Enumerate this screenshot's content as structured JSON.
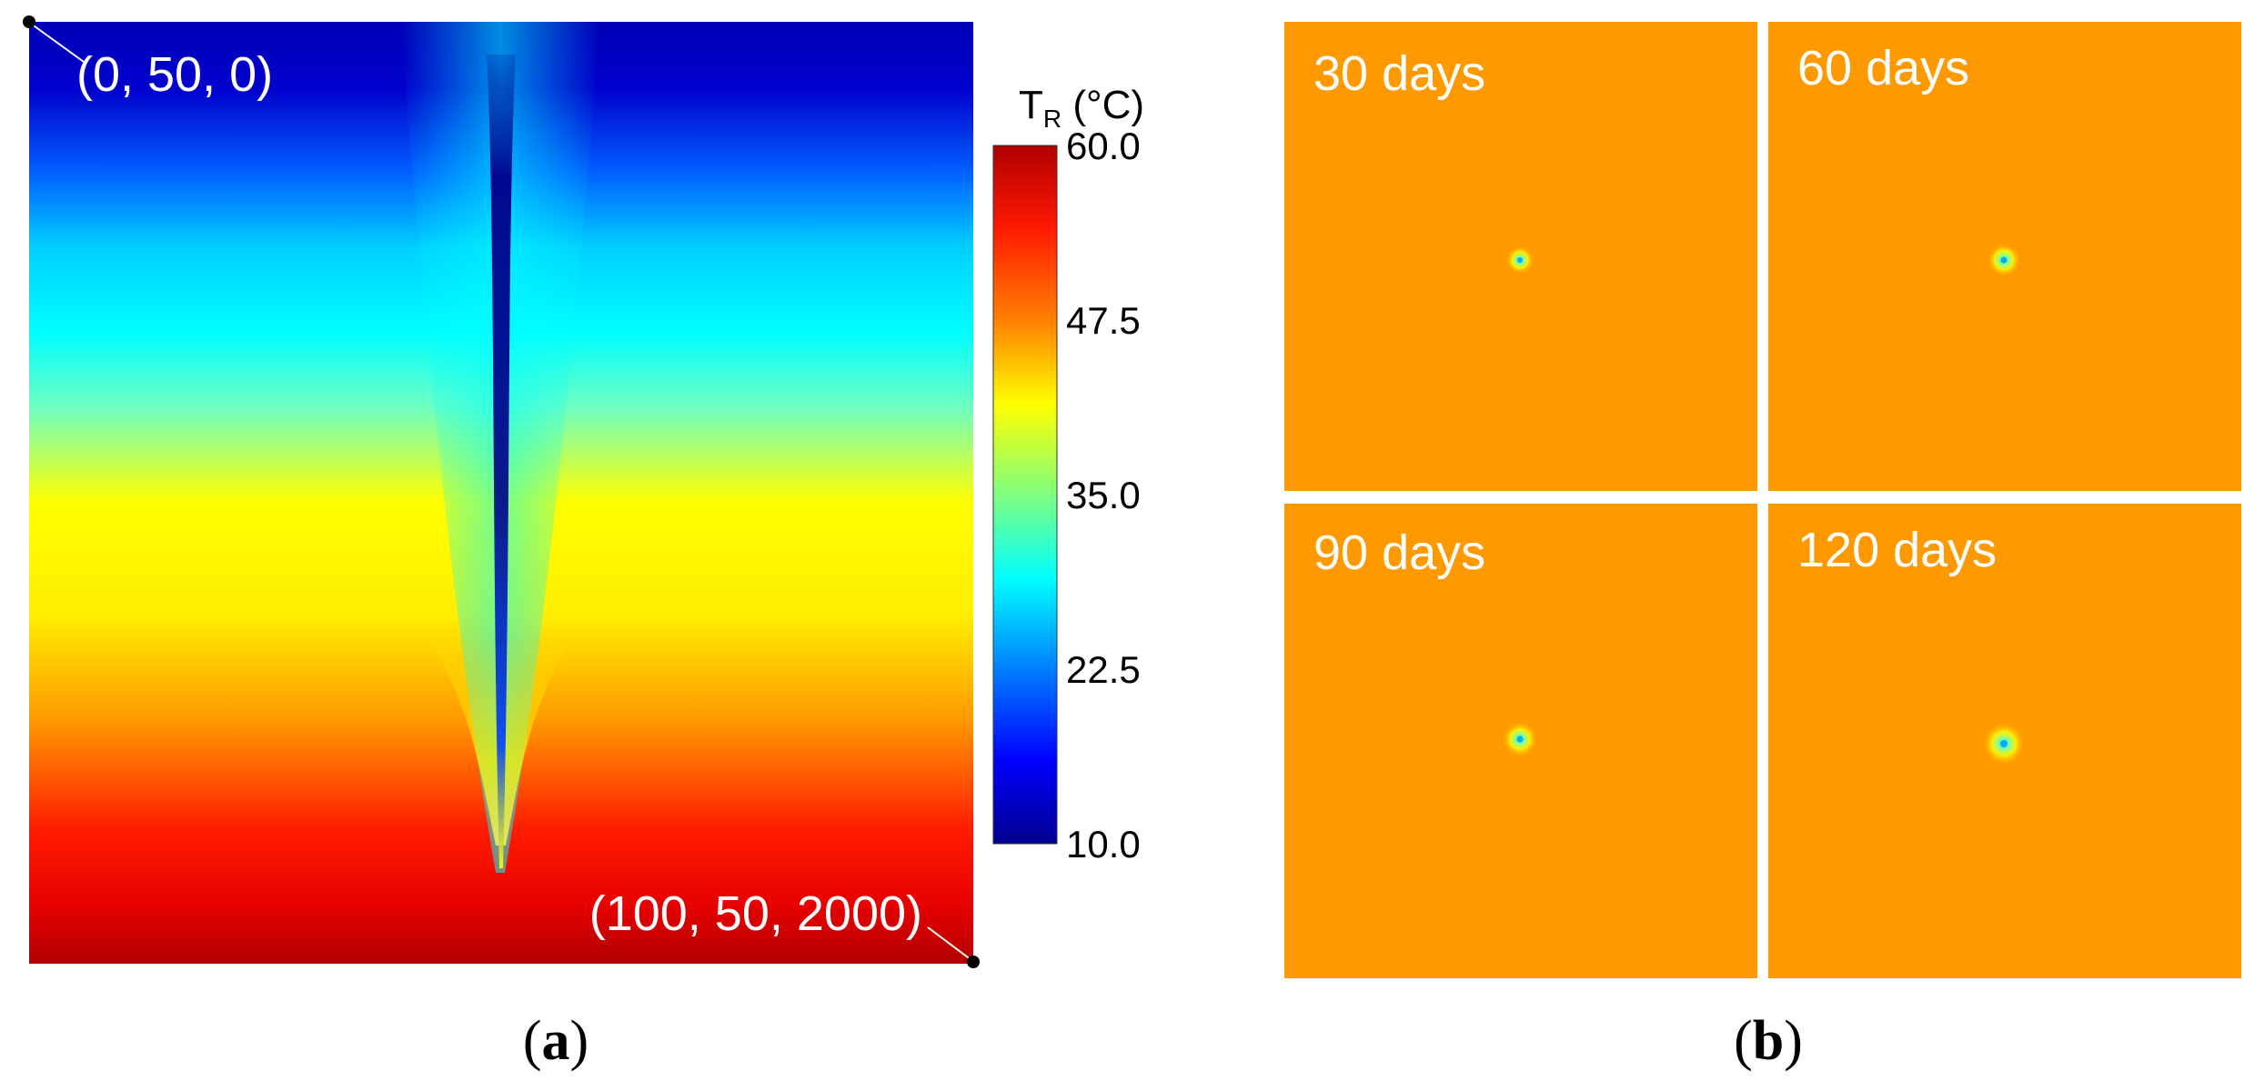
{
  "panel_a": {
    "caption_open": "(",
    "caption_letter": "a",
    "caption_close": ")",
    "corner_top_label": "(0, 50, 0)",
    "corner_bottom_label": "(100, 50, 2000)",
    "colorbar": {
      "title_main": "T",
      "title_sub": "R",
      "title_unit": " (°C)",
      "min": 10.0,
      "max": 60.0,
      "ticks": [
        "60.0",
        "47.5",
        "35.0",
        "22.5",
        "10.0"
      ],
      "colors": [
        "#b00000",
        "#ff1a00",
        "#ff7f00",
        "#ffff00",
        "#7fff7f",
        "#00ffff",
        "#007fff",
        "#0000ff",
        "#00008f"
      ]
    }
  },
  "panel_b": {
    "caption_open": "(",
    "caption_letter": "b",
    "caption_close": ")",
    "background_color": "#ff9900",
    "tiles": [
      {
        "label": "30 days"
      },
      {
        "label": "60 days"
      },
      {
        "label": "90 days"
      },
      {
        "label": "120 days"
      }
    ]
  }
}
